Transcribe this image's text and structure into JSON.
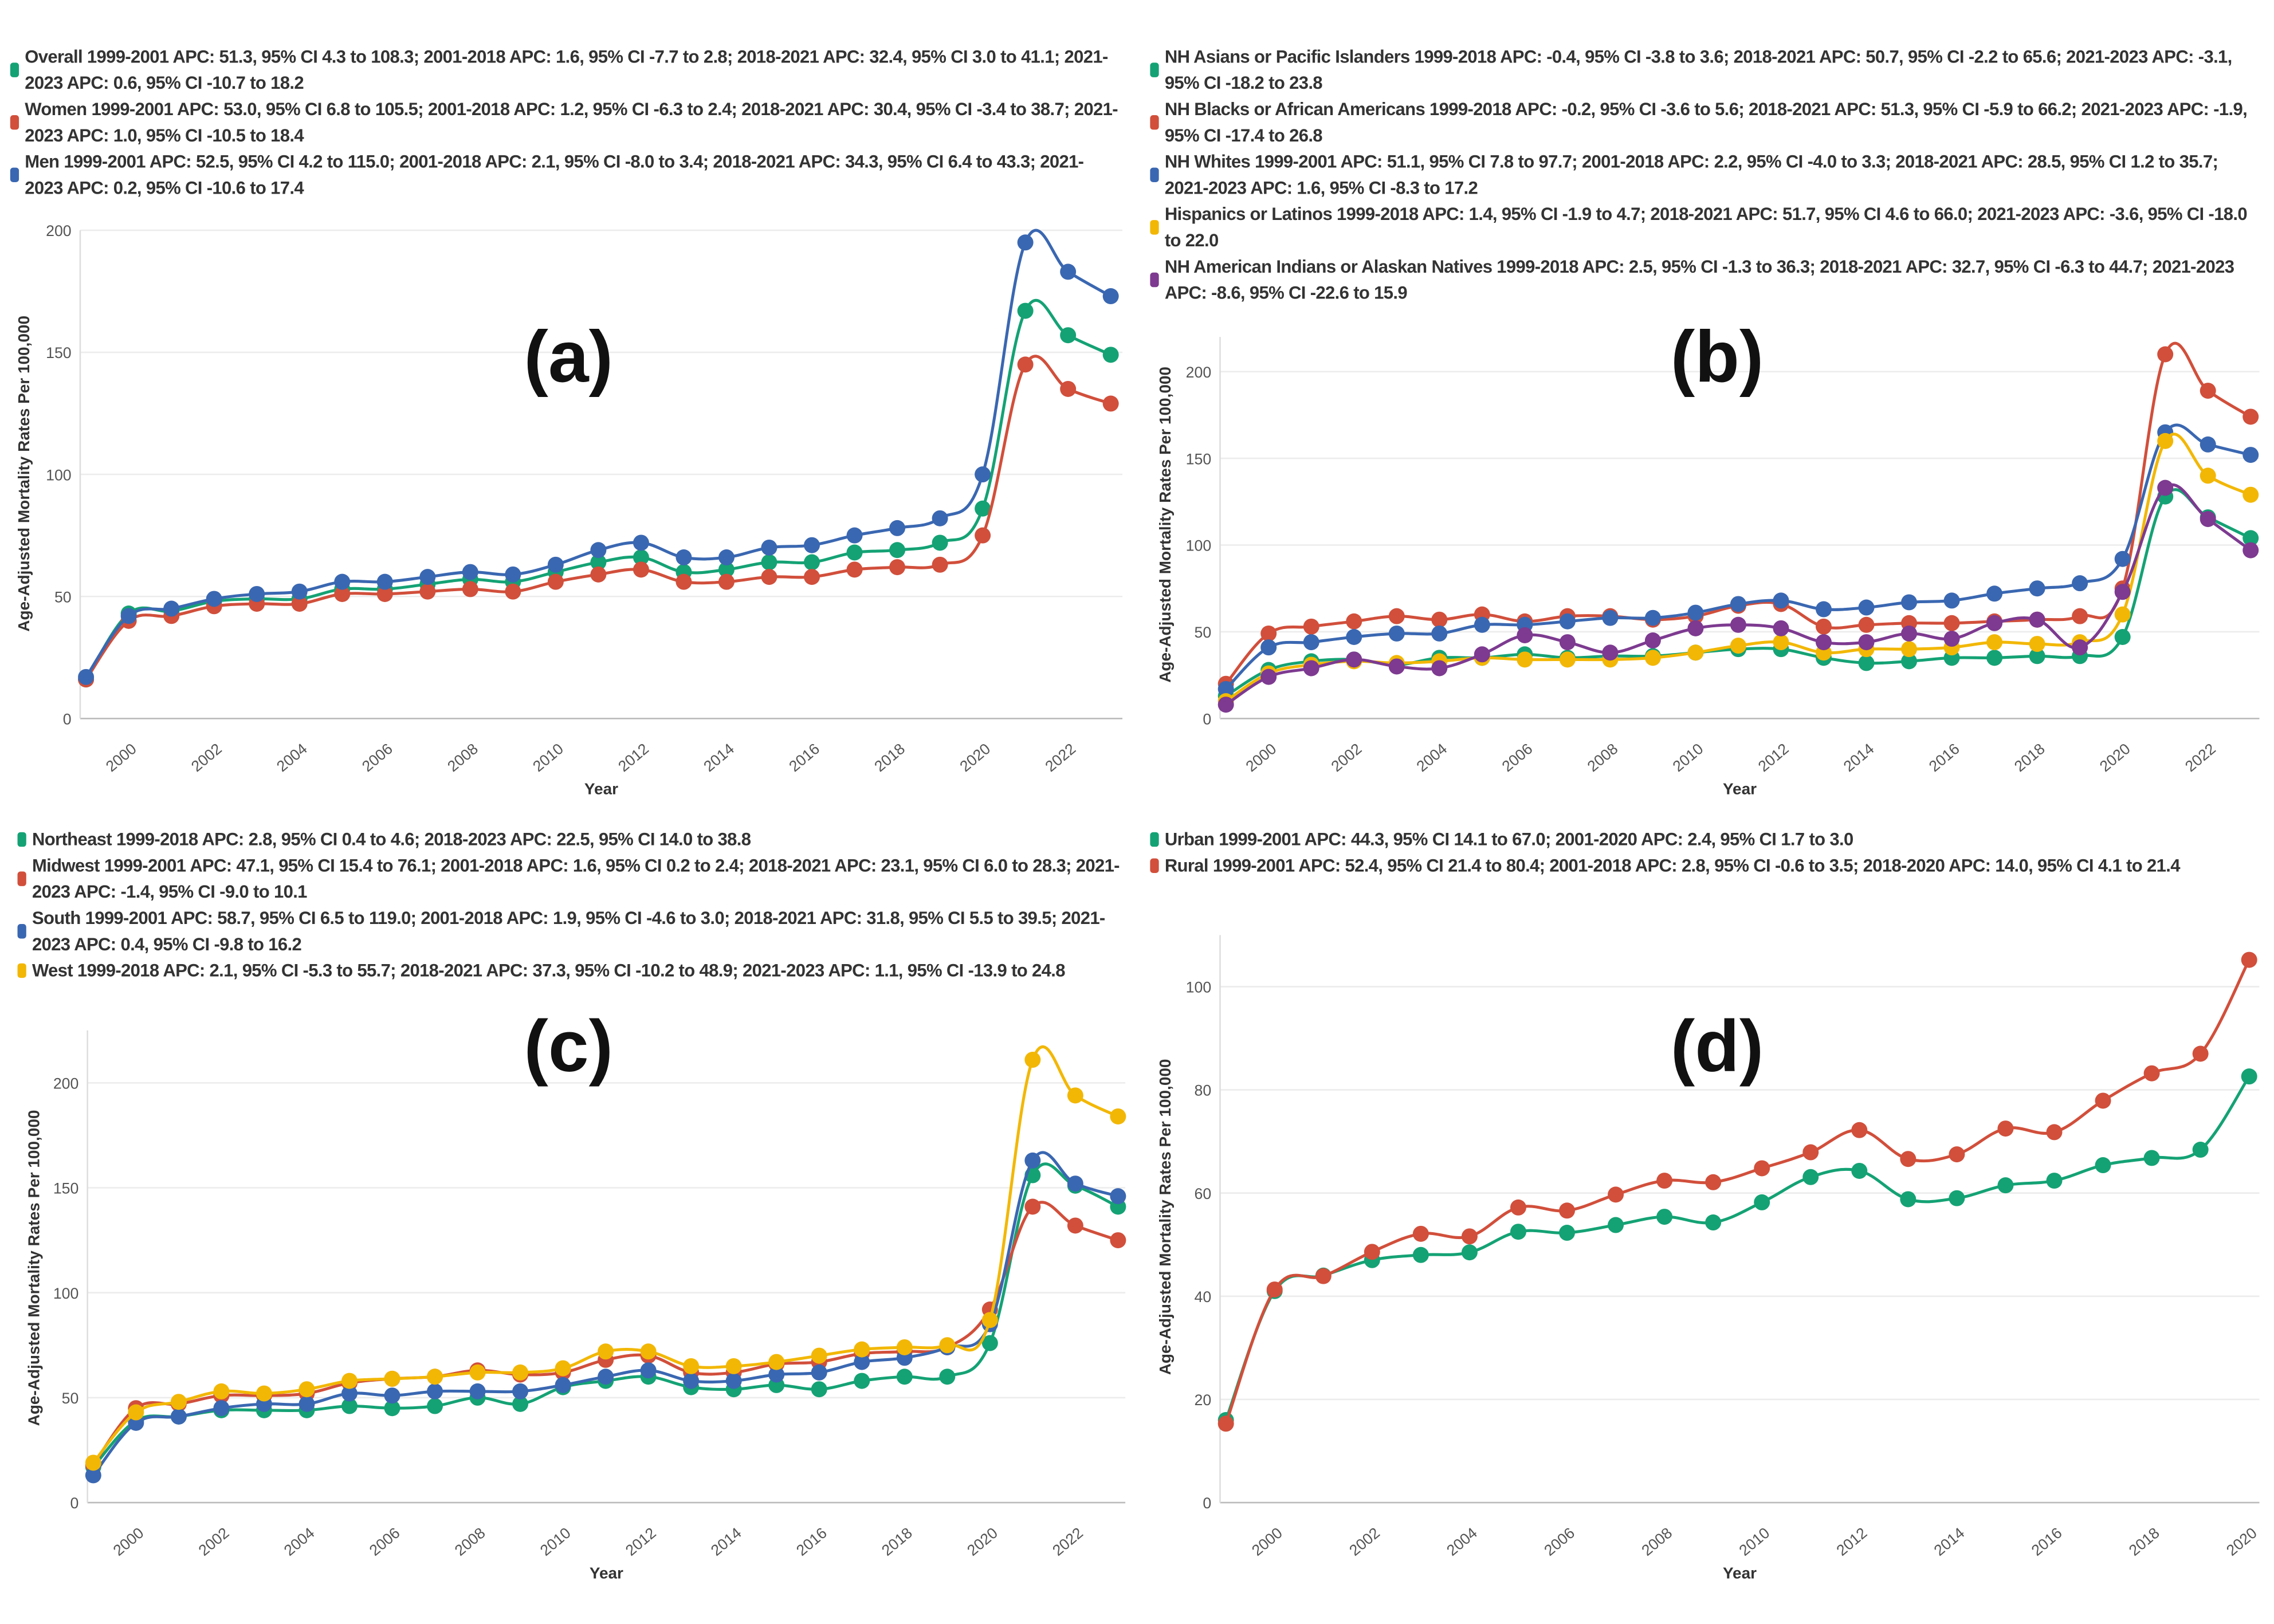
{
  "colors": {
    "green": "#14a274",
    "red": "#d14f3b",
    "blue": "#3a67b1",
    "yellow": "#f2b705",
    "purple": "#7d3a90"
  },
  "chart_data": [
    {
      "type": "line",
      "panel_label": "(a)",
      "xlabel": "Year",
      "ylabel": "Age-Adjusted Mortality Rates Per 100,000",
      "ylim": [
        0,
        200
      ],
      "yticks": [
        0,
        50,
        100,
        150,
        200
      ],
      "x": [
        1999,
        2000,
        2001,
        2002,
        2003,
        2004,
        2005,
        2006,
        2007,
        2008,
        2009,
        2010,
        2011,
        2012,
        2013,
        2014,
        2015,
        2016,
        2017,
        2018,
        2019,
        2020,
        2021,
        2022,
        2023
      ],
      "xticks": [
        2000,
        2002,
        2004,
        2006,
        2008,
        2010,
        2012,
        2014,
        2016,
        2018,
        2020,
        2022
      ],
      "grid": true,
      "legend_placement": "top",
      "series": [
        {
          "name": "Overall",
          "legend": "Overall 1999-2001 APC: 51.3, 95% CI 4.3 to 108.3; 2001-2018 APC: 1.6, 95% CI -7.7 to 2.8; 2018-2021 APC: 32.4, 95% CI 3.0 to 41.1; 2021-2023 APC: 0.6, 95% CI -10.7 to 18.2",
          "color": "#14a274",
          "values": [
            16,
            43,
            44,
            48,
            49,
            49,
            53,
            53,
            55,
            57,
            56,
            60,
            64,
            66,
            60,
            61,
            64,
            64,
            68,
            69,
            72,
            86,
            167,
            157,
            149
          ]
        },
        {
          "name": "Women",
          "legend": "Women 1999-2001 APC: 53.0, 95% CI 6.8 to 105.5; 2001-2018 APC: 1.2, 95% CI -6.3 to 2.4; 2018-2021 APC: 30.4, 95% CI -3.4 to 38.7; 2021-2023 APC: 1.0, 95% CI -10.5 to 18.4",
          "color": "#d14f3b",
          "values": [
            16,
            40,
            42,
            46,
            47,
            47,
            51,
            51,
            52,
            53,
            52,
            56,
            59,
            61,
            56,
            56,
            58,
            58,
            61,
            62,
            63,
            75,
            145,
            135,
            129
          ]
        },
        {
          "name": "Men",
          "legend": "Men 1999-2001 APC: 52.5, 95% CI 4.2 to 115.0; 2001-2018 APC: 2.1, 95% CI -8.0 to 3.4; 2018-2021 APC: 34.3, 95% CI 6.4 to 43.3; 2021-2023 APC: 0.2, 95% CI -10.6 to 17.4",
          "color": "#3a67b1",
          "values": [
            17,
            42,
            45,
            49,
            51,
            52,
            56,
            56,
            58,
            60,
            59,
            63,
            69,
            72,
            66,
            66,
            70,
            71,
            75,
            78,
            82,
            100,
            195,
            183,
            173
          ]
        }
      ]
    },
    {
      "type": "line",
      "panel_label": "(b)",
      "xlabel": "Year",
      "ylabel": "Age-Adjusted Mortality Rates Per 100,000",
      "ylim": [
        0,
        220
      ],
      "yticks": [
        0,
        50,
        100,
        150,
        200
      ],
      "x": [
        1999,
        2000,
        2001,
        2002,
        2003,
        2004,
        2005,
        2006,
        2007,
        2008,
        2009,
        2010,
        2011,
        2012,
        2013,
        2014,
        2015,
        2016,
        2017,
        2018,
        2019,
        2020,
        2021,
        2022,
        2023
      ],
      "xticks": [
        2000,
        2002,
        2004,
        2006,
        2008,
        2010,
        2012,
        2014,
        2016,
        2018,
        2020,
        2022
      ],
      "grid": true,
      "legend_placement": "top",
      "series": [
        {
          "name": "NH Asians or Pacific Islanders",
          "legend": "NH Asians or Pacific Islanders 1999-2018 APC: -0.4, 95% CI -3.8 to 3.6; 2018-2021 APC: 50.7, 95% CI -2.2 to 65.6; 2021-2023 APC: -3.1, 95% CI -18.2 to 23.8",
          "color": "#14a274",
          "values": [
            13,
            28,
            33,
            34,
            31,
            35,
            35,
            37,
            35,
            36,
            36,
            38,
            40,
            40,
            35,
            32,
            33,
            35,
            35,
            36,
            36,
            47,
            128,
            116,
            104
          ]
        },
        {
          "name": "NH Blacks or African Americans",
          "legend": "NH Blacks or African Americans 1999-2018 APC: -0.2, 95% CI -3.6 to 5.6; 2018-2021 APC: 51.3, 95% CI -5.9 to 66.2; 2021-2023 APC: -1.9, 95% CI -17.4 to 26.8",
          "color": "#d14f3b",
          "values": [
            20,
            49,
            53,
            56,
            59,
            57,
            60,
            56,
            59,
            59,
            57,
            59,
            65,
            66,
            53,
            54,
            55,
            55,
            56,
            57,
            59,
            75,
            210,
            189,
            174
          ]
        },
        {
          "name": "NH Whites",
          "legend": "NH Whites 1999-2001 APC: 51.1, 95% CI 7.8 to 97.7; 2001-2018 APC: 2.2, 95% CI -4.0 to 3.3; 2018-2021 APC: 28.5, 95% CI 1.2 to 35.7; 2021-2023 APC: 1.6, 95% CI -8.3 to 17.2",
          "color": "#3a67b1",
          "values": [
            17,
            41,
            44,
            47,
            49,
            49,
            54,
            54,
            56,
            58,
            58,
            61,
            66,
            68,
            63,
            64,
            67,
            68,
            72,
            75,
            78,
            92,
            165,
            158,
            152
          ]
        },
        {
          "name": "Hispanics or Latinos",
          "legend": "Hispanics or Latinos 1999-2018 APC: 1.4, 95% CI -1.9 to 4.7; 2018-2021 APC: 51.7, 95% CI 4.6 to 66.0; 2021-2023 APC: -3.6, 95% CI -18.0 to 22.0",
          "color": "#f2b705",
          "values": [
            10,
            26,
            31,
            33,
            32,
            33,
            35,
            34,
            34,
            34,
            35,
            38,
            42,
            44,
            38,
            40,
            40,
            41,
            44,
            43,
            44,
            60,
            160,
            140,
            129
          ]
        },
        {
          "name": "NH American Indians or Alaskan Natives",
          "legend": "NH American Indians or Alaskan Natives 1999-2018 APC: 2.5, 95% CI -1.3 to 36.3; 2018-2021 APC: 32.7, 95% CI -6.3 to 44.7; 2021-2023 APC: -8.6, 95% CI -22.6 to 15.9",
          "color": "#7d3a90",
          "values": [
            8,
            24,
            29,
            34,
            30,
            29,
            37,
            48,
            44,
            38,
            45,
            52,
            54,
            52,
            44,
            44,
            49,
            46,
            55,
            57,
            41,
            73,
            133,
            115,
            97
          ]
        }
      ]
    },
    {
      "type": "line",
      "panel_label": "(c)",
      "xlabel": "Year",
      "ylabel": "Age-Adjusted Mortality Rates Per 100,000",
      "ylim": [
        0,
        225
      ],
      "yticks": [
        0,
        50,
        100,
        150,
        200
      ],
      "x": [
        1999,
        2000,
        2001,
        2002,
        2003,
        2004,
        2005,
        2006,
        2007,
        2008,
        2009,
        2010,
        2011,
        2012,
        2013,
        2014,
        2015,
        2016,
        2017,
        2018,
        2019,
        2020,
        2021,
        2022,
        2023
      ],
      "xticks": [
        2000,
        2002,
        2004,
        2006,
        2008,
        2010,
        2012,
        2014,
        2016,
        2018,
        2020,
        2022
      ],
      "grid": true,
      "legend_placement": "top",
      "series": [
        {
          "name": "Northeast",
          "legend": "Northeast 1999-2018 APC: 2.8, 95% CI 0.4 to 4.6; 2018-2023 APC: 22.5, 95% CI 14.0 to 38.8",
          "color": "#14a274",
          "values": [
            17,
            39,
            41,
            44,
            44,
            44,
            46,
            45,
            46,
            50,
            47,
            55,
            58,
            60,
            55,
            54,
            56,
            54,
            58,
            60,
            60,
            76,
            156,
            151,
            141
          ]
        },
        {
          "name": "Midwest",
          "legend": "Midwest 1999-2001 APC: 47.1, 95% CI 15.4 to 76.1; 2001-2018 APC: 1.6, 95% CI 0.2 to 2.4; 2018-2021 APC: 23.1, 95% CI 6.0 to 28.3; 2021-2023 APC: -1.4, 95% CI -9.0 to 10.1",
          "color": "#d14f3b",
          "values": [
            18,
            45,
            47,
            51,
            51,
            52,
            57,
            59,
            60,
            63,
            61,
            62,
            68,
            70,
            62,
            62,
            66,
            67,
            71,
            72,
            74,
            92,
            141,
            132,
            125
          ]
        },
        {
          "name": "South",
          "legend": "South 1999-2001 APC: 58.7, 95% CI 6.5 to 119.0; 2001-2018 APC: 1.9, 95% CI -4.6 to 3.0; 2018-2021 APC: 31.8, 95% CI 5.5 to 39.5; 2021-2023 APC: 0.4, 95% CI -9.8 to 16.2",
          "color": "#3a67b1",
          "values": [
            13,
            38,
            41,
            45,
            47,
            47,
            52,
            51,
            53,
            53,
            53,
            56,
            60,
            63,
            58,
            58,
            61,
            62,
            67,
            69,
            74,
            85,
            163,
            152,
            146
          ]
        },
        {
          "name": "West",
          "legend": "West 1999-2018 APC: 2.1, 95% CI -5.3 to 55.7; 2018-2021 APC: 37.3, 95% CI -10.2 to 48.9; 2021-2023 APC: 1.1, 95% CI -13.9 to 24.8",
          "color": "#f2b705",
          "values": [
            19,
            43,
            48,
            53,
            52,
            54,
            58,
            59,
            60,
            62,
            62,
            64,
            72,
            72,
            65,
            65,
            67,
            70,
            73,
            74,
            75,
            87,
            211,
            194,
            184
          ]
        }
      ]
    },
    {
      "type": "line",
      "panel_label": "(d)",
      "xlabel": "Year",
      "ylabel": "Age-Adjusted Mortality Rates Per 100,000",
      "ylim": [
        0,
        110
      ],
      "yticks": [
        0,
        20,
        40,
        60,
        80,
        100
      ],
      "x": [
        1999,
        2000,
        2001,
        2002,
        2003,
        2004,
        2005,
        2006,
        2007,
        2008,
        2009,
        2010,
        2011,
        2012,
        2013,
        2014,
        2015,
        2016,
        2017,
        2018,
        2019,
        2020
      ],
      "xticks": [
        2000,
        2002,
        2004,
        2006,
        2008,
        2010,
        2012,
        2014,
        2016,
        2018,
        2020
      ],
      "grid": true,
      "legend_placement": "top",
      "series": [
        {
          "name": "Urban",
          "legend": "Urban 1999-2001 APC: 44.3, 95% CI 14.1 to 67.0; 2001-2020 APC: 2.4, 95% CI 1.7 to 3.0",
          "color": "#14a274",
          "values": [
            16,
            41,
            44,
            47,
            48,
            48.5,
            52.5,
            52.3,
            53.8,
            55.4,
            54.3,
            58.2,
            63.1,
            64.3,
            58.8,
            59,
            61.5,
            62.4,
            65.4,
            66.8,
            68.4,
            82.6
          ]
        },
        {
          "name": "Rural",
          "legend": "Rural 1999-2001 APC: 52.4, 95% CI 21.4 to 80.4; 2001-2018 APC: 2.8, 95% CI -0.6 to 3.5; 2018-2020 APC: 14.0, 95% CI 4.1 to 21.4",
          "color": "#d14f3b",
          "values": [
            15.3,
            41.3,
            43.9,
            48.6,
            52.1,
            51.6,
            57.2,
            56.6,
            59.7,
            62.4,
            62.1,
            64.8,
            67.9,
            72.2,
            66.6,
            67.5,
            72.5,
            71.8,
            77.9,
            83.2,
            87,
            105.2
          ]
        }
      ]
    }
  ]
}
